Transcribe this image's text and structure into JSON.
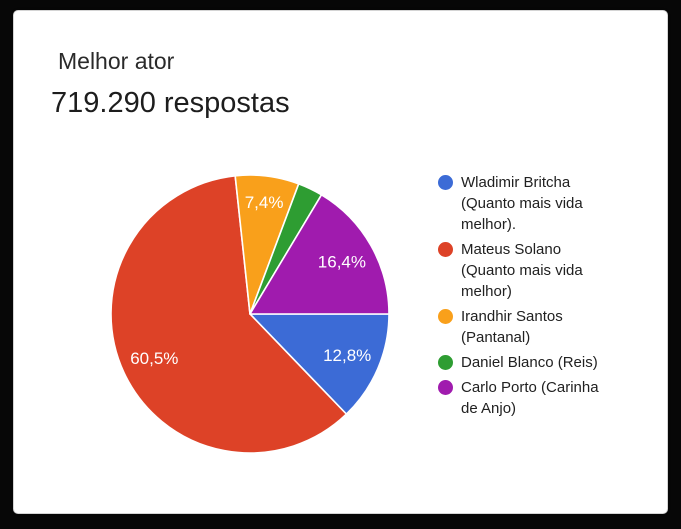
{
  "frame": {
    "background": "#070707"
  },
  "card": {
    "background": "#ffffff",
    "border_color": "#d4d4d4"
  },
  "header": {
    "question_title": "Melhor ator",
    "response_count": "719.290 respostas"
  },
  "chart_data": {
    "type": "pie",
    "title": "Melhor ator",
    "subtitle": "719.290 respostas",
    "start_angle_deg": 90,
    "direction": "clockwise",
    "legend_position": "right",
    "separator_color": "#ffffff",
    "label_color": "#ffffff",
    "slices": [
      {
        "label": "Wladimir Britcha (Quanto mais vida melhor).",
        "value": 12.8,
        "display": "12,8%",
        "color": "#3c6bd6",
        "label_radius": 0.76
      },
      {
        "label": "Mateus Solano (Quanto mais vida melhor)",
        "value": 60.5,
        "display": "60,5%",
        "color": "#dd4227",
        "label_radius": 0.76
      },
      {
        "label": "Irandhir Santos (Pantanal)",
        "value": 7.4,
        "display": "7,4%",
        "color": "#f9a01b",
        "label_radius": 0.81
      },
      {
        "label": "Daniel Blanco (Reis)",
        "value": 2.9,
        "display": "",
        "color": "#2e9d32",
        "label_radius": 0.76
      },
      {
        "label": "Carlo Porto (Carinha de Anjo)",
        "value": 16.4,
        "display": "16,4%",
        "color": "#a01bae",
        "label_radius": 0.76
      }
    ]
  },
  "legend": {
    "items": [
      {
        "label": "Wladimir Britcha (Quanto mais vida melhor).",
        "color": "#3c6bd6"
      },
      {
        "label": "Mateus Solano (Quanto mais vida melhor)",
        "color": "#dd4227"
      },
      {
        "label": "Irandhir Santos (Pantanal)",
        "color": "#f9a01b"
      },
      {
        "label": "Daniel Blanco (Reis)",
        "color": "#2e9d32"
      },
      {
        "label": "Carlo Porto (Carinha de Anjo)",
        "color": "#a01bae"
      }
    ]
  }
}
